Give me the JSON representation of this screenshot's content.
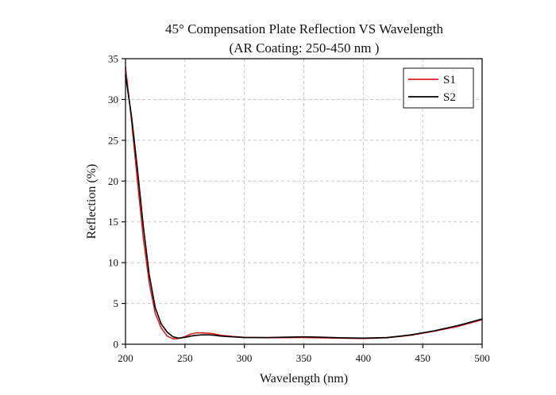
{
  "chart_data": {
    "type": "line",
    "title": "45° Compensation Plate Reflection VS Wavelength",
    "subtitle": "(AR Coating: 250-450 nm )",
    "xlabel": "Wavelength (nm)",
    "ylabel": "Reflection (%)",
    "xlim": [
      200,
      500
    ],
    "ylim": [
      0,
      35
    ],
    "xticks": [
      200,
      250,
      300,
      350,
      400,
      450,
      500
    ],
    "yticks": [
      0,
      5,
      10,
      15,
      20,
      25,
      30,
      35
    ],
    "grid": true,
    "legend_position": "top-right",
    "series": [
      {
        "name": "S1",
        "color": "#e02020",
        "points": [
          [
            200,
            34.0
          ],
          [
            205,
            27.5
          ],
          [
            210,
            20.0
          ],
          [
            215,
            13.0
          ],
          [
            220,
            7.5
          ],
          [
            225,
            3.8
          ],
          [
            230,
            2.0
          ],
          [
            235,
            1.0
          ],
          [
            240,
            0.65
          ],
          [
            245,
            0.7
          ],
          [
            250,
            0.95
          ],
          [
            255,
            1.25
          ],
          [
            260,
            1.4
          ],
          [
            265,
            1.38
          ],
          [
            270,
            1.35
          ],
          [
            275,
            1.25
          ],
          [
            280,
            1.1
          ],
          [
            290,
            0.95
          ],
          [
            300,
            0.85
          ],
          [
            320,
            0.8
          ],
          [
            340,
            0.82
          ],
          [
            350,
            0.82
          ],
          [
            360,
            0.8
          ],
          [
            380,
            0.75
          ],
          [
            400,
            0.7
          ],
          [
            420,
            0.8
          ],
          [
            440,
            1.1
          ],
          [
            460,
            1.6
          ],
          [
            480,
            2.2
          ],
          [
            500,
            3.0
          ]
        ]
      },
      {
        "name": "S2",
        "color": "#000000",
        "points": [
          [
            200,
            33.0
          ],
          [
            205,
            28.0
          ],
          [
            210,
            21.5
          ],
          [
            215,
            14.5
          ],
          [
            220,
            8.5
          ],
          [
            225,
            4.5
          ],
          [
            230,
            2.5
          ],
          [
            235,
            1.5
          ],
          [
            240,
            0.9
          ],
          [
            245,
            0.75
          ],
          [
            250,
            0.85
          ],
          [
            255,
            1.0
          ],
          [
            260,
            1.1
          ],
          [
            265,
            1.15
          ],
          [
            270,
            1.15
          ],
          [
            275,
            1.1
          ],
          [
            280,
            1.0
          ],
          [
            290,
            0.9
          ],
          [
            300,
            0.82
          ],
          [
            320,
            0.82
          ],
          [
            340,
            0.88
          ],
          [
            350,
            0.9
          ],
          [
            360,
            0.88
          ],
          [
            380,
            0.8
          ],
          [
            400,
            0.75
          ],
          [
            420,
            0.82
          ],
          [
            440,
            1.15
          ],
          [
            460,
            1.65
          ],
          [
            480,
            2.3
          ],
          [
            500,
            3.1
          ]
        ]
      }
    ]
  }
}
